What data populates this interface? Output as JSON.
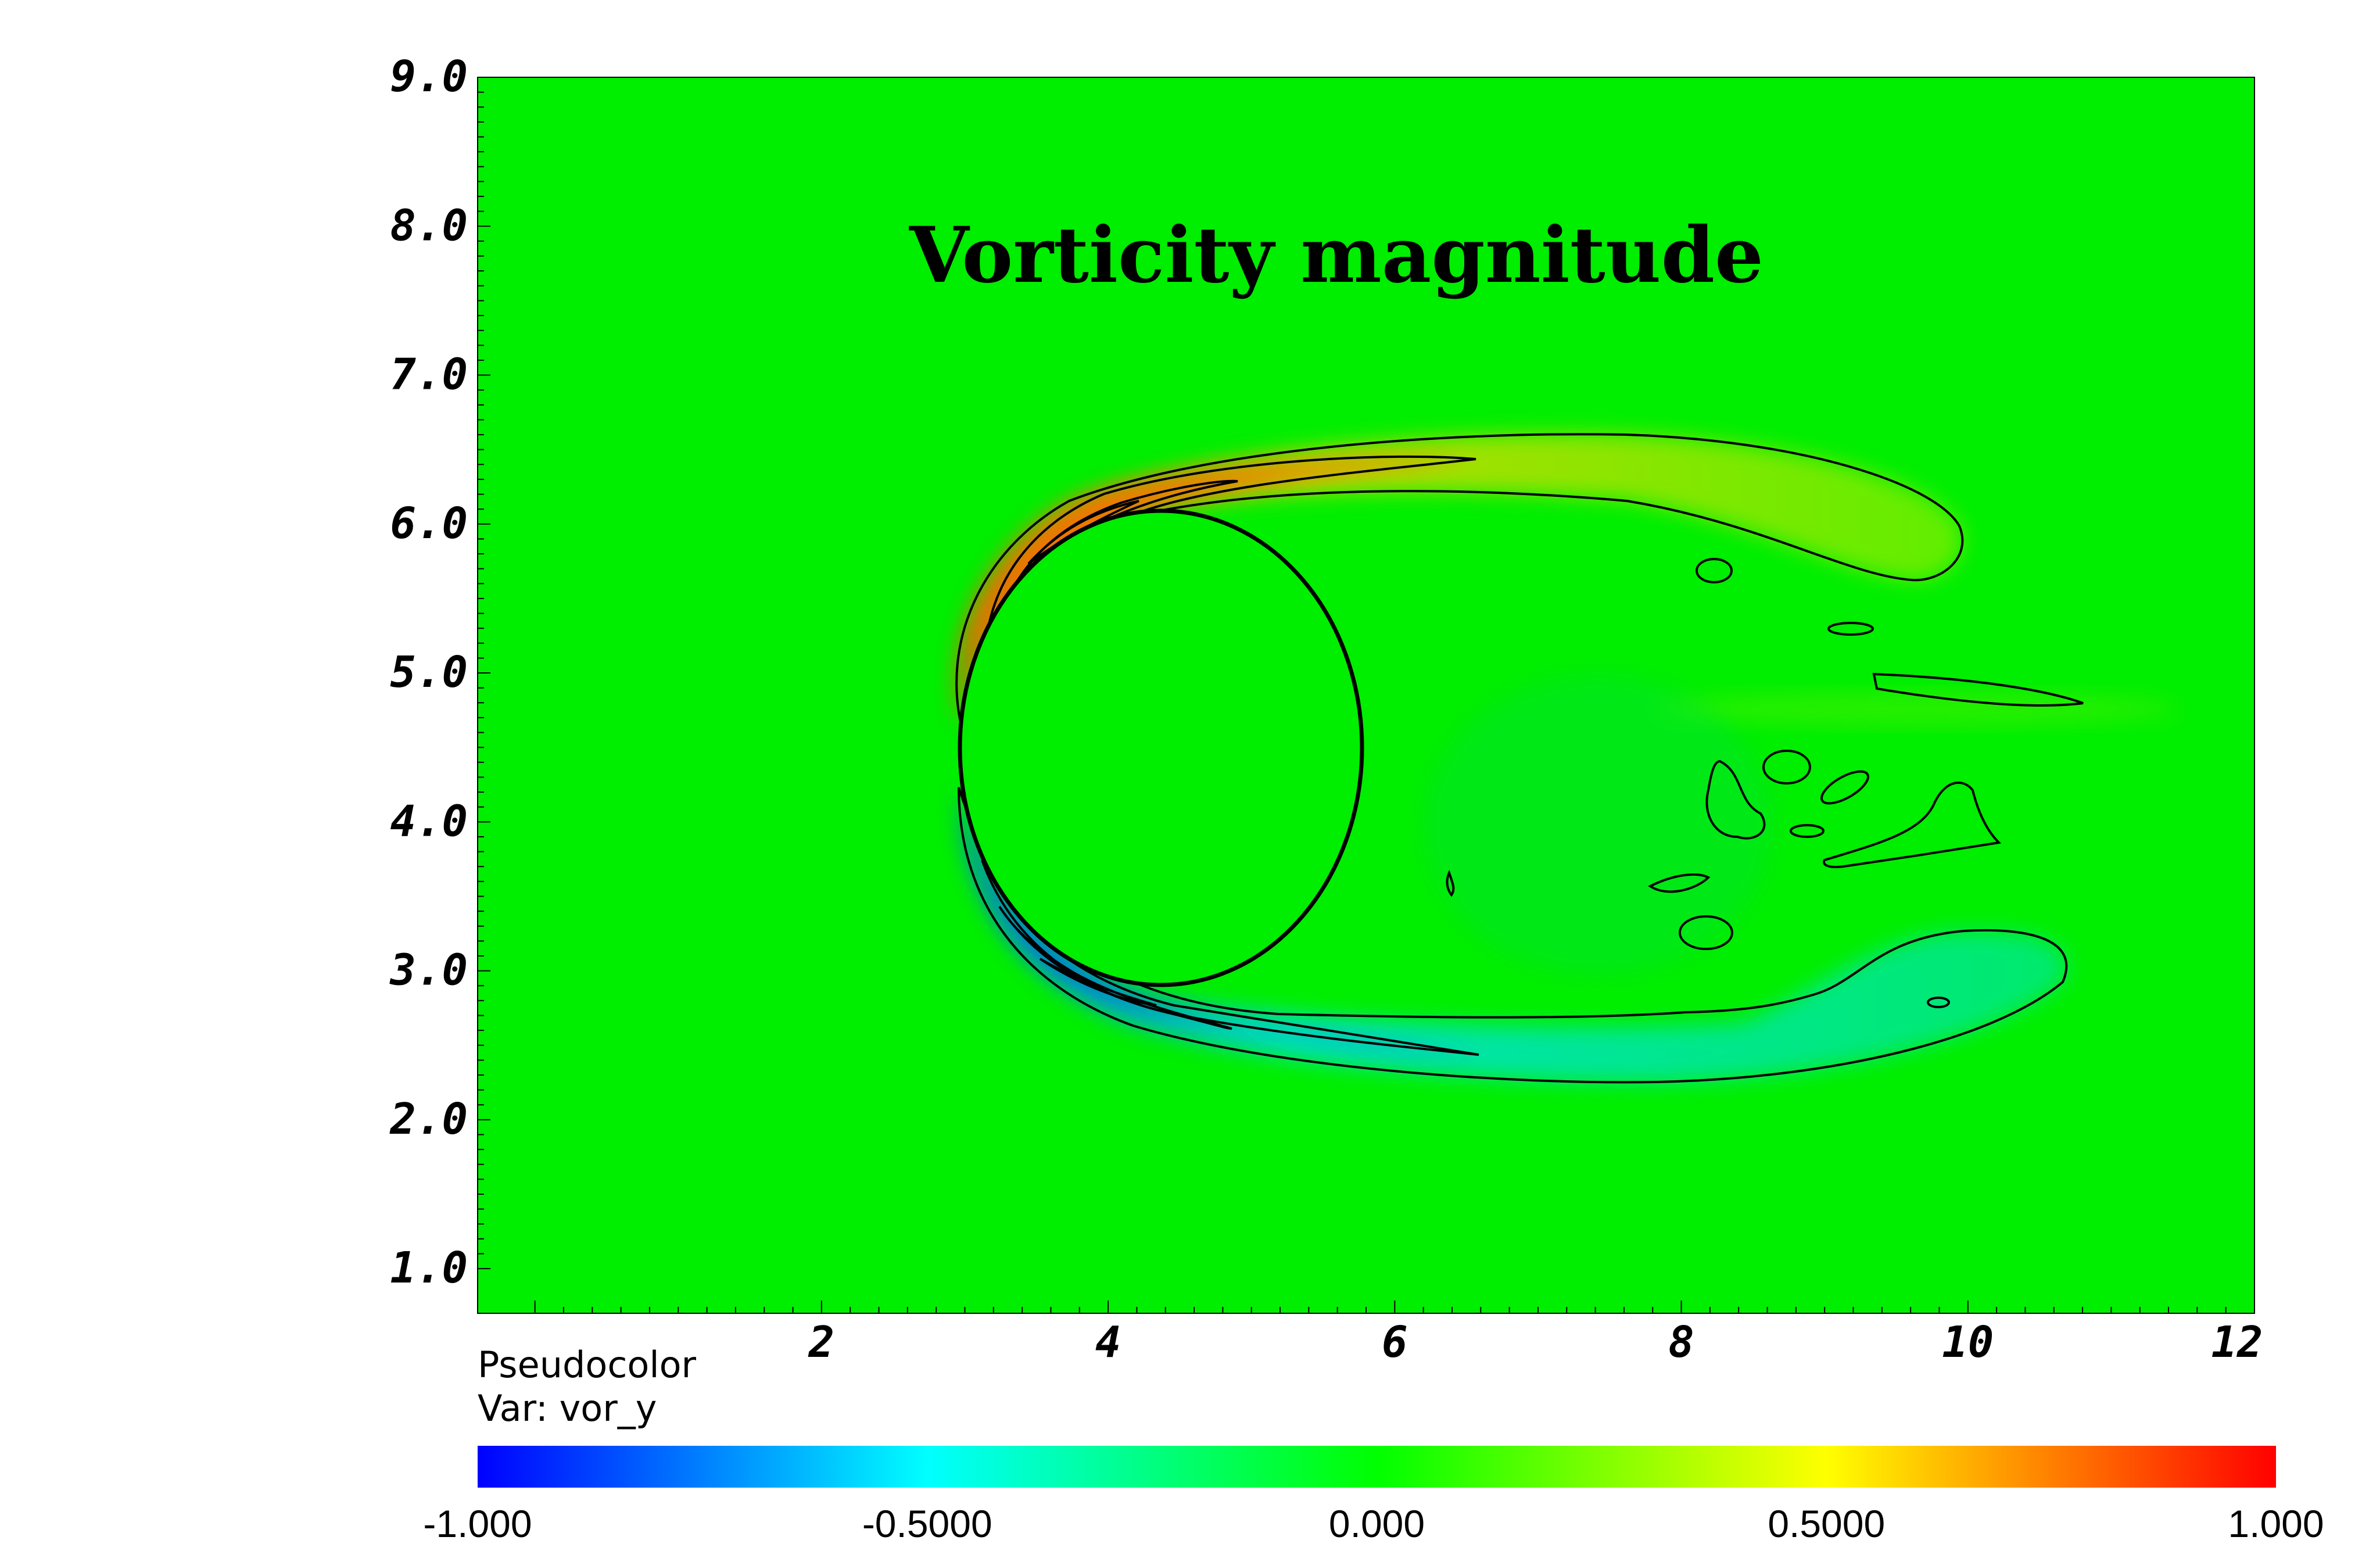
{
  "chart_data": {
    "type": "heatmap",
    "title": "Vorticity magnitude",
    "xlabel": "",
    "ylabel": "",
    "x_ticks": [
      "2",
      "4",
      "6",
      "8",
      "10",
      "12"
    ],
    "y_ticks": [
      "1.0",
      "2.0",
      "3.0",
      "4.0",
      "5.0",
      "6.0",
      "7.0",
      "8.0",
      "9.0"
    ],
    "xlim": [
      -0.4,
      12
    ],
    "ylim": [
      0.7,
      9.0
    ],
    "grid": false,
    "legend": {
      "plot_type": "Pseudocolor",
      "variable": "Var: vor_y",
      "placement": "bottom"
    },
    "colorbar": {
      "min": -1.0,
      "max": 1.0,
      "labels": [
        "-1.000",
        "-0.5000",
        "0.000",
        "0.5000",
        "1.000"
      ],
      "colors": [
        "#0000ff",
        "#00ffff",
        "#00ff00",
        "#ffff00",
        "#ff0000"
      ]
    },
    "background_color": "#00ee00",
    "cylinder": {
      "cx": 4.6,
      "cy": 4.6,
      "r": 1.35
    }
  }
}
